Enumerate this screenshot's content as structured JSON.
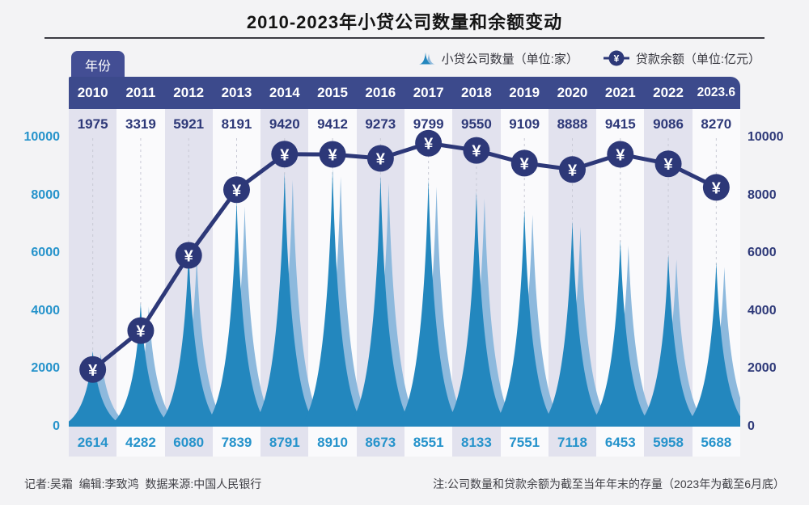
{
  "title": "2010-2023年小贷公司数量和余额变动",
  "year_tab_label": "年份",
  "marker_glyph": "¥",
  "legend": {
    "company_label": "小贷公司数量（单位:家）",
    "balance_label": "贷款余额（单位:亿元）"
  },
  "chart_data": {
    "type": "area",
    "subtype": "spike-area with line overlay",
    "categories": [
      "2010",
      "2011",
      "2012",
      "2013",
      "2014",
      "2015",
      "2016",
      "2017",
      "2018",
      "2019",
      "2020",
      "2021",
      "2022",
      "2023.6"
    ],
    "series": [
      {
        "name": "小贷公司数量",
        "unit": "家",
        "mark": "spike-area",
        "axis": "left",
        "values": [
          2614,
          4282,
          6080,
          7839,
          8791,
          8910,
          8673,
          8551,
          8133,
          7551,
          7118,
          6453,
          5958,
          5688
        ]
      },
      {
        "name": "贷款余额",
        "unit": "亿元",
        "mark": "line",
        "axis": "right",
        "values": [
          1975,
          3319,
          5921,
          8191,
          9420,
          9412,
          9273,
          9799,
          9550,
          9109,
          8888,
          9415,
          9086,
          8270
        ]
      }
    ],
    "y_ticks": [
      0,
      2000,
      4000,
      6000,
      8000,
      10000
    ],
    "ylim": [
      0,
      10000
    ],
    "grid": "vertical-dashed",
    "legend_position": "top-right"
  },
  "footer": {
    "credits": "记者:吴霜  编辑:李致鸿  数据来源:中国人民银行",
    "note": "注:公司数量和贷款余额为截至当年年末的存量（2023年为截至6月底）"
  },
  "colors": {
    "navy": "#2d3878",
    "band": "#3c4a8c",
    "tab": "#434e94",
    "spike_dark": "#2387be",
    "spike_light": "#8db9dd",
    "teal_text": "#2693cb",
    "stripe_lavender": "#e2e2ee",
    "stripe_white": "#fafafc",
    "grid_dash": "#c9cad6",
    "page_bg": "#f3f3f5",
    "marker_text": "#ffffff"
  }
}
